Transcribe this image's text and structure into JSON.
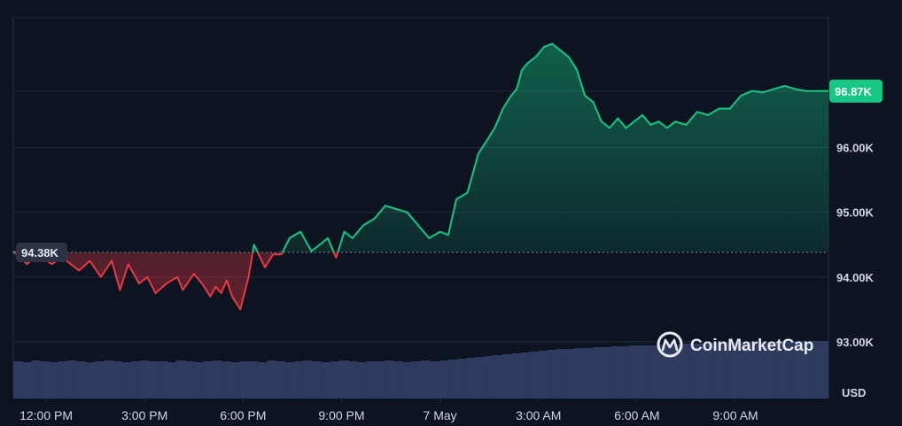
{
  "brand": {
    "name": "CoinMarketCap",
    "logo_icon": "coinmarketcap-logo-icon"
  },
  "colors": {
    "background": "#0d1421",
    "grid": "#222b3a",
    "up": "#16c784",
    "down": "#ea3943",
    "volume": "#2f3b5e",
    "baseline": "#7b8494",
    "last_badge_bg": "#16c784",
    "ref_badge_bg": "#2b3344"
  },
  "chart_data": {
    "type": "line",
    "title": "",
    "xlabel": "",
    "ylabel": "USD",
    "ylim": [
      92000,
      98000
    ],
    "reference_value": 94380,
    "reference_label": "94.38K",
    "last_value": 96870,
    "last_label": "96.87K",
    "y_ticks": [
      {
        "value": 93000,
        "label": "93.00K"
      },
      {
        "value": 94000,
        "label": "94.00K"
      },
      {
        "value": 95000,
        "label": "95.00K"
      },
      {
        "value": 96000,
        "label": "96.00K"
      }
    ],
    "x_range": [
      "2025-05-06 11:00",
      "2025-05-07 11:50"
    ],
    "x_ticks": [
      {
        "x": "2025-05-06 12:00",
        "label": "12:00 PM"
      },
      {
        "x": "2025-05-06 15:00",
        "label": "3:00 PM"
      },
      {
        "x": "2025-05-06 18:00",
        "label": "6:00 PM"
      },
      {
        "x": "2025-05-06 21:00",
        "label": "9:00 PM"
      },
      {
        "x": "2025-05-07 00:00",
        "label": "7 May"
      },
      {
        "x": "2025-05-07 03:00",
        "label": "3:00 AM"
      },
      {
        "x": "2025-05-07 06:00",
        "label": "6:00 AM"
      },
      {
        "x": "2025-05-07 09:00",
        "label": "9:00 AM"
      }
    ],
    "grid": true,
    "series": [
      {
        "x": [
          "2025-05-06 11:00",
          "2025-05-06 11:25",
          "2025-05-06 11:45",
          "2025-05-06 12:10",
          "2025-05-06 12:30",
          "2025-05-06 13:00",
          "2025-05-06 13:20",
          "2025-05-06 13:40",
          "2025-05-06 14:00",
          "2025-05-06 14:15",
          "2025-05-06 14:30",
          "2025-05-06 14:50",
          "2025-05-06 15:05",
          "2025-05-06 15:20",
          "2025-05-06 15:40",
          "2025-05-06 16:00",
          "2025-05-06 16:10",
          "2025-05-06 16:30",
          "2025-05-06 16:45",
          "2025-05-06 17:00",
          "2025-05-06 17:10",
          "2025-05-06 17:20",
          "2025-05-06 17:30",
          "2025-05-06 17:40",
          "2025-05-06 17:55",
          "2025-05-06 18:10",
          "2025-05-06 18:20",
          "2025-05-06 18:40",
          "2025-05-06 18:55",
          "2025-05-06 19:10",
          "2025-05-06 19:25",
          "2025-05-06 19:45",
          "2025-05-06 20:05",
          "2025-05-06 20:20",
          "2025-05-06 20:35",
          "2025-05-06 20:50",
          "2025-05-06 21:05",
          "2025-05-06 21:20",
          "2025-05-06 21:40",
          "2025-05-06 22:00",
          "2025-05-06 22:20",
          "2025-05-06 22:40",
          "2025-05-06 23:00",
          "2025-05-06 23:20",
          "2025-05-06 23:40",
          "2025-05-07 00:00",
          "2025-05-07 00:15",
          "2025-05-07 00:30",
          "2025-05-07 00:50",
          "2025-05-07 01:00",
          "2025-05-07 01:10",
          "2025-05-07 01:25",
          "2025-05-07 01:40",
          "2025-05-07 01:55",
          "2025-05-07 02:10",
          "2025-05-07 02:20",
          "2025-05-07 02:30",
          "2025-05-07 02:40",
          "2025-05-07 02:55",
          "2025-05-07 03:10",
          "2025-05-07 03:25",
          "2025-05-07 03:40",
          "2025-05-07 03:55",
          "2025-05-07 04:10",
          "2025-05-07 04:25",
          "2025-05-07 04:40",
          "2025-05-07 04:55",
          "2025-05-07 05:10",
          "2025-05-07 05:25",
          "2025-05-07 05:40",
          "2025-05-07 05:55",
          "2025-05-07 06:10",
          "2025-05-07 06:25",
          "2025-05-07 06:40",
          "2025-05-07 06:55",
          "2025-05-07 07:10",
          "2025-05-07 07:30",
          "2025-05-07 07:50",
          "2025-05-07 08:10",
          "2025-05-07 08:30",
          "2025-05-07 08:50",
          "2025-05-07 09:10",
          "2025-05-07 09:30",
          "2025-05-07 09:50",
          "2025-05-07 10:10",
          "2025-05-07 10:30",
          "2025-05-07 10:50",
          "2025-05-07 11:10",
          "2025-05-07 11:30",
          "2025-05-07 11:50"
        ],
        "values": [
          94400,
          94200,
          94350,
          94200,
          94300,
          94100,
          94250,
          94000,
          94250,
          93800,
          94200,
          93900,
          94000,
          93750,
          93900,
          94000,
          93800,
          94050,
          93900,
          93700,
          93850,
          93750,
          93950,
          93700,
          93500,
          94000,
          94500,
          94150,
          94350,
          94350,
          94600,
          94700,
          94400,
          94500,
          94600,
          94300,
          94700,
          94600,
          94800,
          94900,
          95100,
          95050,
          95000,
          94800,
          94600,
          94700,
          94650,
          95200,
          95300,
          95600,
          95900,
          96100,
          96300,
          96600,
          96800,
          96900,
          97200,
          97300,
          97400,
          97550,
          97600,
          97500,
          97400,
          97200,
          96800,
          96700,
          96400,
          96300,
          96450,
          96300,
          96400,
          96500,
          96350,
          96400,
          96300,
          96400,
          96350,
          96550,
          96500,
          96600,
          96600,
          96800,
          96870,
          96850,
          96900,
          96950,
          96900,
          96870,
          96870,
          96870
        ]
      }
    ],
    "volume_note": "relative bar heights",
    "volume": [
      0.42,
      0.41,
      0.43,
      0.42,
      0.41,
      0.42,
      0.43,
      0.42,
      0.41,
      0.42,
      0.43,
      0.42,
      0.41,
      0.42,
      0.43,
      0.42,
      0.42,
      0.41,
      0.43,
      0.42,
      0.41,
      0.42,
      0.43,
      0.42,
      0.41,
      0.42,
      0.42,
      0.41,
      0.43,
      0.42,
      0.41,
      0.42,
      0.43,
      0.42,
      0.41,
      0.42,
      0.43,
      0.42,
      0.41,
      0.42,
      0.42,
      0.43,
      0.42,
      0.41,
      0.42,
      0.43,
      0.42,
      0.43,
      0.44,
      0.45,
      0.46,
      0.47,
      0.48,
      0.49,
      0.5,
      0.51,
      0.52,
      0.53,
      0.54,
      0.55,
      0.56,
      0.56,
      0.57,
      0.57,
      0.58,
      0.58,
      0.59,
      0.59,
      0.6,
      0.6,
      0.6,
      0.61,
      0.61,
      0.61,
      0.62,
      0.62,
      0.62,
      0.63,
      0.63,
      0.63,
      0.63,
      0.64,
      0.64,
      0.64,
      0.64,
      0.64,
      0.65,
      0.65,
      0.65,
      0.65
    ]
  }
}
